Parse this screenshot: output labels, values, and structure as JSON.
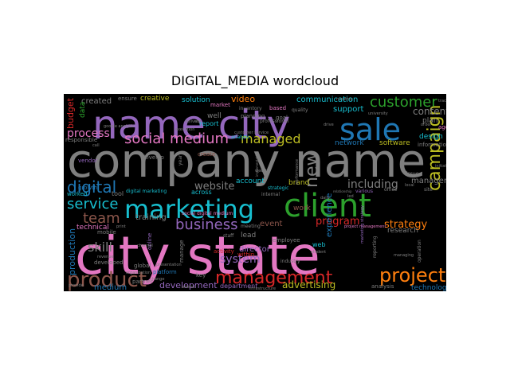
{
  "chart_data": {
    "type": "wordcloud",
    "title": "DIGITAL_MEDIA wordcloud",
    "background": "#000000",
    "words": [
      {
        "text": "company name",
        "weight": 100,
        "color": "#7f7f7f"
      },
      {
        "text": "city state",
        "weight": 96,
        "color": "#e377c2"
      },
      {
        "text": "name city",
        "weight": 70,
        "color": "#9467bd"
      },
      {
        "text": "client",
        "weight": 56,
        "color": "#2ca02c"
      },
      {
        "text": "sale",
        "weight": 50,
        "color": "#1f77b4"
      },
      {
        "text": "marketing",
        "weight": 47,
        "color": "#17becf"
      },
      {
        "text": "management",
        "weight": 40,
        "color": "#d62728"
      },
      {
        "text": "project",
        "weight": 40,
        "color": "#ff7f0e"
      },
      {
        "text": "product",
        "weight": 38,
        "color": "#8c564b"
      },
      {
        "text": "campaign",
        "weight": 34,
        "color": "#bcbd22"
      },
      {
        "text": "social medium",
        "weight": 30,
        "color": "#e377c2"
      },
      {
        "text": "customer",
        "weight": 30,
        "color": "#2ca02c"
      },
      {
        "text": "new",
        "weight": 30,
        "color": "#7f7f7f"
      },
      {
        "text": "digital",
        "weight": 28,
        "color": "#1f77b4"
      },
      {
        "text": "business",
        "weight": 28,
        "color": "#9467bd"
      },
      {
        "text": "managed",
        "weight": 26,
        "color": "#bcbd22"
      },
      {
        "text": "team",
        "weight": 26,
        "color": "#8c564b"
      },
      {
        "text": "service",
        "weight": 26,
        "color": "#17becf"
      },
      {
        "text": "program",
        "weight": 20,
        "color": "#d62728"
      },
      {
        "text": "strategy",
        "weight": 20,
        "color": "#ff7f0e"
      },
      {
        "text": "including",
        "weight": 20,
        "color": "#7f7f7f"
      },
      {
        "text": "skill",
        "weight": 20,
        "color": "#7f7f7f"
      },
      {
        "text": "system",
        "weight": 20,
        "color": "#9467bd"
      },
      {
        "text": "website",
        "weight": 18,
        "color": "#7f7f7f"
      },
      {
        "text": "process",
        "weight": 18,
        "color": "#e377c2"
      },
      {
        "text": "content",
        "weight": 18,
        "color": "#7f7f7f"
      },
      {
        "text": "production",
        "weight": 16,
        "color": "#1f77b4"
      },
      {
        "text": "advertising",
        "weight": 16,
        "color": "#bcbd22"
      },
      {
        "text": "development",
        "weight": 14,
        "color": "#9467bd"
      },
      {
        "text": "communication",
        "weight": 14,
        "color": "#17becf"
      },
      {
        "text": "video",
        "weight": 14,
        "color": "#ff7f0e"
      },
      {
        "text": "budget",
        "weight": 14,
        "color": "#d62728"
      },
      {
        "text": "experience",
        "weight": 14,
        "color": "#1f77b4"
      },
      {
        "text": "support",
        "weight": 13,
        "color": "#17becf"
      },
      {
        "text": "training",
        "weight": 13,
        "color": "#7f7f7f"
      },
      {
        "text": "manager",
        "weight": 13,
        "color": "#7f7f7f"
      },
      {
        "text": "director",
        "weight": 13,
        "color": "#9467bd"
      },
      {
        "text": "event",
        "weight": 13,
        "color": "#8c564b"
      },
      {
        "text": "created",
        "weight": 13,
        "color": "#7f7f7f"
      },
      {
        "text": "medium",
        "weight": 12,
        "color": "#1f77b4"
      },
      {
        "text": "technology",
        "weight": 12,
        "color": "#1f77b4"
      },
      {
        "text": "account",
        "weight": 12,
        "color": "#17becf"
      },
      {
        "text": "brand",
        "weight": 12,
        "color": "#bcbd22"
      },
      {
        "text": "network",
        "weight": 12,
        "color": "#1f77b4"
      },
      {
        "text": "software",
        "weight": 12,
        "color": "#bcbd22"
      },
      {
        "text": "research",
        "weight": 11,
        "color": "#7f7f7f"
      },
      {
        "text": "technical",
        "weight": 11,
        "color": "#e377c2"
      },
      {
        "text": "design",
        "weight": 11,
        "color": "#17becf"
      },
      {
        "text": "plan",
        "weight": 11,
        "color": "#7f7f7f"
      },
      {
        "text": "department",
        "weight": 11,
        "color": "#9467bd"
      },
      {
        "text": "lead",
        "weight": 11,
        "color": "#7f7f7f"
      },
      {
        "text": "work",
        "weight": 11,
        "color": "#8c564b"
      },
      {
        "text": "data",
        "weight": 10,
        "color": "#2ca02c"
      },
      {
        "text": "solution",
        "weight": 10,
        "color": "#17becf"
      },
      {
        "text": "creative",
        "weight": 10,
        "color": "#bcbd22"
      },
      {
        "text": "information",
        "weight": 9,
        "color": "#7f7f7f"
      },
      {
        "text": "agency",
        "weight": 9,
        "color": "#e377c2"
      },
      {
        "text": "well",
        "weight": 9,
        "color": "#7f7f7f"
      },
      {
        "text": "report",
        "weight": 9,
        "color": "#17becf"
      },
      {
        "text": "across",
        "weight": 9,
        "color": "#17becf"
      },
      {
        "text": "tool",
        "weight": 9,
        "color": "#7f7f7f"
      },
      {
        "text": "analysis",
        "weight": 9,
        "color": "#7f7f7f"
      },
      {
        "text": "web",
        "weight": 9,
        "color": "#17becf"
      },
      {
        "text": "responsible",
        "weight": 8,
        "color": "#7f7f7f"
      },
      {
        "text": "vendor",
        "weight": 8,
        "color": "#9467bd"
      },
      {
        "text": "worked",
        "weight": 8,
        "color": "#17becf"
      },
      {
        "text": "online",
        "weight": 8,
        "color": "#9467bd"
      },
      {
        "text": "activity",
        "weight": 8,
        "color": "#d62728"
      },
      {
        "text": "within",
        "weight": 8,
        "color": "#d62728"
      },
      {
        "text": "staff",
        "weight": 8,
        "color": "#7f7f7f"
      },
      {
        "text": "employee",
        "weight": 8,
        "color": "#7f7f7f"
      },
      {
        "text": "key",
        "weight": 8,
        "color": "#7f7f7f"
      },
      {
        "text": "internal",
        "weight": 8,
        "color": "#7f7f7f"
      },
      {
        "text": "strategic",
        "weight": 8,
        "color": "#17becf"
      },
      {
        "text": "office",
        "weight": 8,
        "color": "#7f7f7f"
      },
      {
        "text": "various",
        "weight": 8,
        "color": "#9467bd"
      },
      {
        "text": "create",
        "weight": 8,
        "color": "#8c564b"
      },
      {
        "text": "develop",
        "weight": 8,
        "color": "#7f7f7f"
      },
      {
        "text": "ensure",
        "weight": 7,
        "color": "#7f7f7f"
      },
      {
        "text": "market",
        "weight": 7,
        "color": "#e377c2"
      },
      {
        "text": "inventory",
        "weight": 7,
        "color": "#7f7f7f"
      },
      {
        "text": "planning",
        "weight": 7,
        "color": "#7f7f7f"
      },
      {
        "text": "goal",
        "weight": 7,
        "color": "#7f7f7f"
      },
      {
        "text": "based",
        "weight": 7,
        "color": "#e377c2"
      },
      {
        "text": "professional",
        "weight": 7,
        "color": "#7f7f7f"
      },
      {
        "text": "quality",
        "weight": 7,
        "color": "#7f7f7f"
      },
      {
        "text": "issue",
        "weight": 7,
        "color": "#7f7f7f"
      },
      {
        "text": "site",
        "weight": 7,
        "color": "#7f7f7f"
      },
      {
        "text": "growth",
        "weight": 7,
        "color": "#1f77b4"
      },
      {
        "text": "mobile",
        "weight": 7,
        "color": "#7f7f7f"
      },
      {
        "text": "developed",
        "weight": 7,
        "color": "#7f7f7f"
      },
      {
        "text": "global",
        "weight": 7,
        "color": "#7f7f7f"
      },
      {
        "text": "manage",
        "weight": 7,
        "color": "#7f7f7f"
      },
      {
        "text": "platform",
        "weight": 7,
        "color": "#1f77b4"
      },
      {
        "text": "analytic",
        "weight": 7,
        "color": "#17becf"
      },
      {
        "text": "partner",
        "weight": 7,
        "color": "#7f7f7f"
      },
      {
        "text": "meeting",
        "weight": 7,
        "color": "#7f7f7f"
      },
      {
        "text": "industry",
        "weight": 6,
        "color": "#7f7f7f"
      },
      {
        "text": "student",
        "weight": 6,
        "color": "#7f7f7f"
      },
      {
        "text": "digital marketing",
        "weight": 6,
        "color": "#17becf"
      },
      {
        "text": "social digital medium",
        "weight": 6,
        "color": "#e377c2"
      },
      {
        "text": "project management",
        "weight": 5,
        "color": "#e377c2"
      },
      {
        "text": "marketing strategy",
        "weight": 5,
        "color": "#9467bd"
      },
      {
        "text": "delivery",
        "weight": 5,
        "color": "#7f7f7f"
      },
      {
        "text": "provide",
        "weight": 5,
        "color": "#7f7f7f"
      },
      {
        "text": "revenue",
        "weight": 5,
        "color": "#7f7f7f"
      },
      {
        "text": "print",
        "weight": 5,
        "color": "#7f7f7f"
      },
      {
        "text": "call",
        "weight": 5,
        "color": "#7f7f7f"
      },
      {
        "text": "year",
        "weight": 5,
        "color": "#7f7f7f"
      },
      {
        "text": "university",
        "weight": 5,
        "color": "#7f7f7f"
      },
      {
        "text": "operation",
        "weight": 5,
        "color": "#7f7f7f"
      },
      {
        "text": "reporting",
        "weight": 5,
        "color": "#7f7f7f"
      },
      {
        "text": "monthly",
        "weight": 5,
        "color": "#7f7f7f"
      },
      {
        "text": "drive",
        "weight": 5,
        "color": "#7f7f7f"
      },
      {
        "text": "tracking",
        "weight": 4,
        "color": "#7f7f7f"
      },
      {
        "text": "initiative",
        "weight": 4,
        "color": "#7f7f7f"
      },
      {
        "text": "order",
        "weight": 4,
        "color": "#7f7f7f"
      },
      {
        "text": "local",
        "weight": 4,
        "color": "#7f7f7f"
      },
      {
        "text": "channel",
        "weight": 4,
        "color": "#7f7f7f"
      },
      {
        "text": "presentation",
        "weight": 4,
        "color": "#7f7f7f"
      },
      {
        "text": "organization",
        "weight": 4,
        "color": "#7f7f7f"
      },
      {
        "text": "infrastructure",
        "weight": 4,
        "color": "#7f7f7f"
      },
      {
        "text": "managing",
        "weight": 4,
        "color": "#7f7f7f"
      },
      {
        "text": "ad",
        "weight": 4,
        "color": "#7f7f7f"
      },
      {
        "text": "execution",
        "weight": 4,
        "color": "#7f7f7f"
      },
      {
        "text": "customer service",
        "weight": 4,
        "color": "#7f7f7f"
      },
      {
        "text": "google analytic",
        "weight": 4,
        "color": "#7f7f7f"
      },
      {
        "text": "implementation",
        "weight": 4,
        "color": "#7f7f7f"
      },
      {
        "text": "performance",
        "weight": 4,
        "color": "#7f7f7f"
      },
      {
        "text": "relationship",
        "weight": 4,
        "color": "#7f7f7f"
      },
      {
        "text": "weekly",
        "weight": 4,
        "color": "#7f7f7f"
      },
      {
        "text": "led",
        "weight": 4,
        "color": "#7f7f7f"
      },
      {
        "text": "daily",
        "weight": 4,
        "color": "#7f7f7f"
      },
      {
        "text": "change",
        "weight": 4,
        "color": "#7f7f7f"
      },
      {
        "text": "attend",
        "weight": 4,
        "color": "#7f7f7f"
      }
    ]
  }
}
